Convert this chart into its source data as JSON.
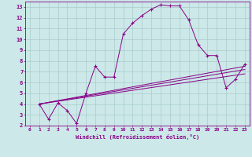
{
  "xlabel": "Windchill (Refroidissement éolien,°C)",
  "background_color": "#cce8e8",
  "line_color": "#880088",
  "grid_color": "#aacccc",
  "xlim": [
    -0.5,
    23.5
  ],
  "ylim": [
    2,
    13.5
  ],
  "xticks": [
    0,
    1,
    2,
    3,
    4,
    5,
    6,
    7,
    8,
    9,
    10,
    11,
    12,
    13,
    14,
    15,
    16,
    17,
    18,
    19,
    20,
    21,
    22,
    23
  ],
  "yticks": [
    2,
    3,
    4,
    5,
    6,
    7,
    8,
    9,
    10,
    11,
    12,
    13
  ],
  "main_series": {
    "x": [
      1,
      2,
      3,
      4,
      5,
      6,
      7,
      8,
      9,
      10,
      11,
      12,
      13,
      14,
      15,
      16,
      17,
      18,
      19,
      20,
      21,
      22,
      23
    ],
    "y": [
      4.0,
      2.6,
      4.1,
      3.4,
      2.2,
      5.0,
      7.5,
      6.5,
      6.5,
      10.5,
      11.5,
      12.2,
      12.8,
      13.2,
      13.1,
      13.1,
      11.8,
      9.5,
      8.5,
      8.5,
      5.5,
      6.3,
      7.7
    ]
  },
  "trend_lines": [
    {
      "x": [
        1,
        23
      ],
      "y": [
        4.0,
        7.5
      ]
    },
    {
      "x": [
        1,
        23
      ],
      "y": [
        4.0,
        7.2
      ]
    },
    {
      "x": [
        1,
        23
      ],
      "y": [
        4.0,
        6.8
      ]
    }
  ]
}
